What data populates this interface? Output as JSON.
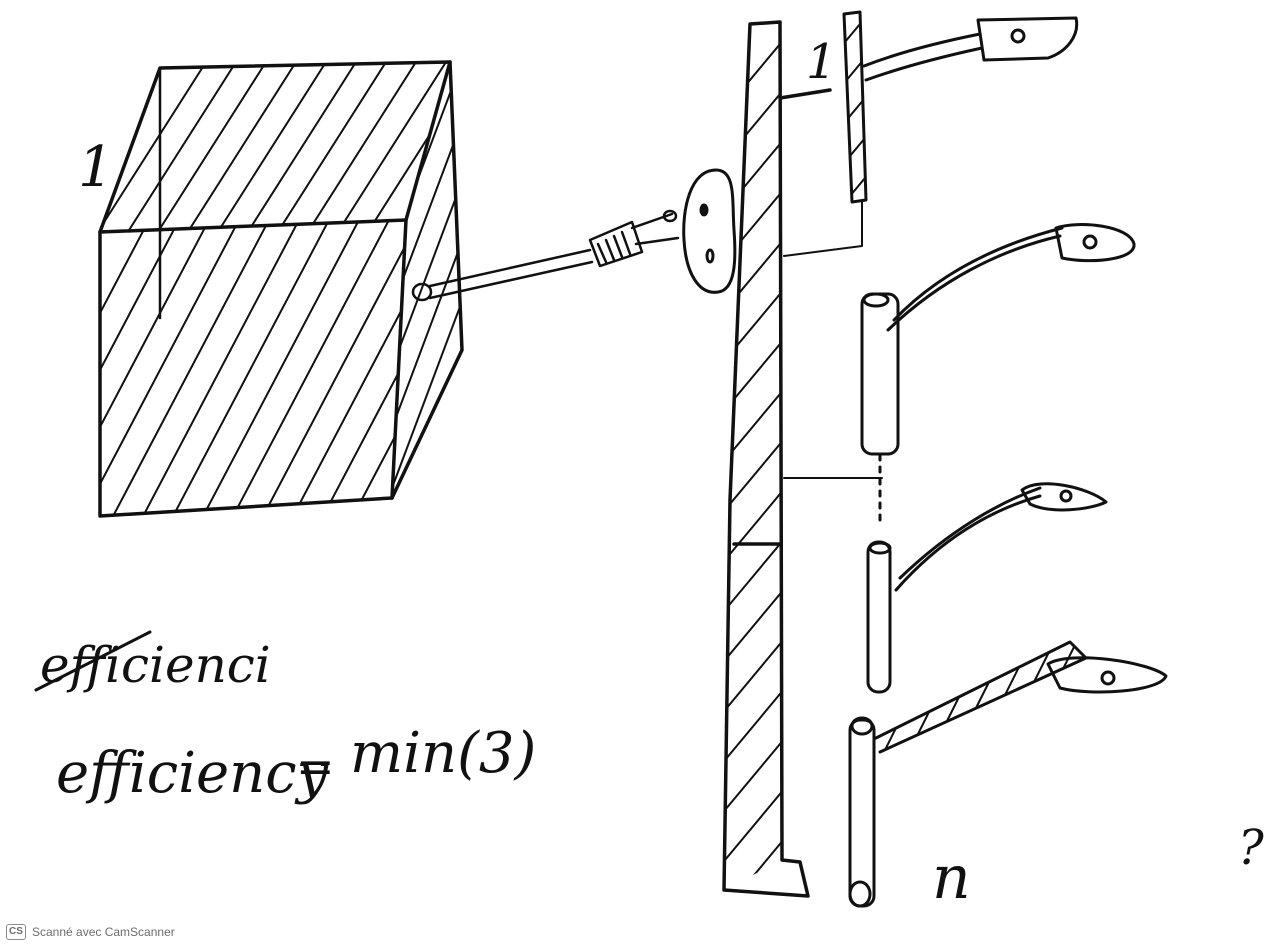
{
  "labels": {
    "box_label": "1",
    "top_lamp_label": "1",
    "crossed_word": "efficienci",
    "formula_left": "efficiency",
    "formula_eq": "=",
    "formula_right": "min(3)",
    "bottom_label": "n",
    "corner_mark": "?"
  },
  "footer": {
    "logo_text": "CS",
    "scanner_text": "Scanné avec CamScanner"
  },
  "icons": {
    "plug": "plug-icon",
    "socket": "wall-socket-icon",
    "lamp": "street-lamp-icon"
  }
}
